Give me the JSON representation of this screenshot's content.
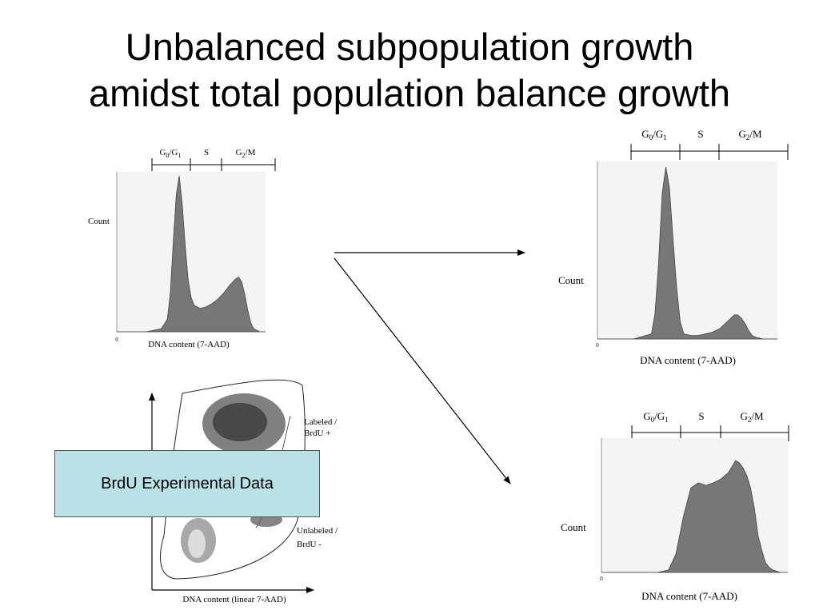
{
  "slide": {
    "title_line1": "Unbalanced subpopulation growth",
    "title_line2": "amidst total population balance growth",
    "caption": "BrdU Experimental Data",
    "colors": {
      "histogram_fill": "#777777",
      "caption_bg": "#b9e1e6",
      "arrow": "#000000"
    }
  },
  "chart_data": [
    {
      "type": "area",
      "panel": "initial-histogram",
      "phase_labels": [
        "G0/G1",
        "S",
        "G2/M"
      ],
      "ylabel": "Count",
      "xlabel": "DNA content (7-AAD)",
      "x_tick_labels": [
        "0"
      ],
      "y_tick_labels": [],
      "x": [
        0,
        5,
        10,
        15,
        17,
        18,
        19,
        20,
        21,
        22,
        23,
        24,
        25,
        26,
        28,
        30,
        32,
        34,
        36,
        38,
        40,
        41,
        42,
        43,
        44,
        45,
        46,
        48,
        50
      ],
      "y": [
        0,
        0,
        0,
        2,
        8,
        25,
        58,
        88,
        100,
        82,
        55,
        33,
        22,
        17,
        15,
        16,
        18,
        21,
        25,
        30,
        34,
        35,
        32,
        24,
        14,
        6,
        2,
        0,
        0
      ]
    },
    {
      "type": "area",
      "panel": "unlabeled-histogram",
      "phase_labels": [
        "G0/G1",
        "S",
        "G2/M"
      ],
      "ylabel": "Count",
      "xlabel": "DNA content (7-AAD)",
      "x_tick_labels": [
        "0"
      ],
      "y_tick_labels": [],
      "x": [
        0,
        5,
        10,
        15,
        16,
        17,
        18,
        19,
        20,
        21,
        22,
        23,
        24,
        26,
        28,
        30,
        32,
        34,
        36,
        38,
        39,
        40,
        41,
        42,
        43,
        44,
        46,
        50
      ],
      "y": [
        0,
        0,
        0,
        3,
        15,
        45,
        85,
        100,
        88,
        58,
        30,
        10,
        3,
        2,
        2,
        3,
        4,
        6,
        10,
        14,
        14,
        12,
        9,
        5,
        2,
        1,
        0,
        0
      ]
    },
    {
      "type": "area",
      "panel": "labeled-histogram",
      "phase_labels": [
        "G0/G1",
        "S",
        "G2/M"
      ],
      "ylabel": "Count",
      "xlabel": "DNA content (7-AAD)",
      "x_tick_labels": [
        "0"
      ],
      "y_tick_labels": [],
      "x": [
        0,
        5,
        10,
        15,
        18,
        20,
        22,
        24,
        26,
        28,
        30,
        32,
        34,
        35,
        36,
        37,
        38,
        39,
        40,
        41,
        42,
        43,
        44,
        45,
        46,
        48,
        50
      ],
      "y": [
        0,
        0,
        0,
        0,
        2,
        15,
        45,
        68,
        72,
        70,
        72,
        75,
        80,
        85,
        90,
        88,
        84,
        78,
        68,
        52,
        30,
        18,
        8,
        4,
        2,
        0,
        0
      ]
    },
    {
      "type": "scatter",
      "panel": "brdu-dot-plot",
      "xlabel": "DNA content (linear 7-AAD)",
      "ylabel": "",
      "region_labels": [
        "Labeled / BrdU +",
        "Unlabeled / BrdU -"
      ]
    }
  ],
  "panels": {
    "initial": {
      "phase": {
        "g1_base": "G",
        "g1_sub": "0",
        "g1_mid": "/G",
        "g1_sub2": "1",
        "s": "S",
        "g2_base": "G",
        "g2_sub": "2",
        "g2_rest": "/M"
      },
      "count": "Count",
      "xlabel": "DNA content (7-AAD)",
      "tick0": "0"
    },
    "unlabeled": {
      "phase": {
        "g1_base": "G",
        "g1_sub": "0",
        "g1_mid": "/G",
        "g1_sub2": "1",
        "s": "S",
        "g2_base": "G",
        "g2_sub": "2",
        "g2_rest": "/M"
      },
      "count": "Count",
      "xlabel": "DNA content (7-AAD)",
      "tick0": "0"
    },
    "labeled": {
      "phase": {
        "g1_base": "G",
        "g1_sub": "0",
        "g1_mid": "/G",
        "g1_sub2": "1",
        "s": "S",
        "g2_base": "G",
        "g2_sub": "2",
        "g2_rest": "/M"
      },
      "count": "Count",
      "xlabel": "DNA content (7-AAD)",
      "tick0": "0"
    },
    "dotplot": {
      "xlabel": "DNA content (linear 7-AAD)",
      "labeled_line1": "Labeled /",
      "labeled_line2": "BrdU +",
      "unlabeled_line1": "Unlabeled /",
      "unlabeled_line2": "BrdU -"
    }
  }
}
